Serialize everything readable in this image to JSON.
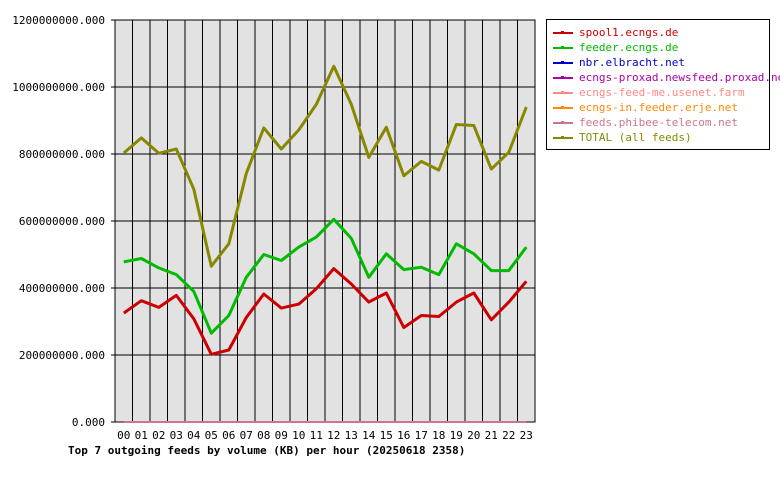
{
  "chart_data": {
    "type": "line",
    "title": "Top 7 outgoing feeds by volume (KB) per hour (20250618 2358)",
    "xlabel": "",
    "ylabel": "",
    "categories": [
      "00",
      "01",
      "02",
      "03",
      "04",
      "05",
      "06",
      "07",
      "08",
      "09",
      "10",
      "11",
      "12",
      "13",
      "14",
      "15",
      "16",
      "17",
      "18",
      "19",
      "20",
      "21",
      "22",
      "23"
    ],
    "yticks": [
      "0.000",
      "200000000.000",
      "400000000.000",
      "600000000.000",
      "800000000.000",
      "1000000000.000",
      "1200000000.000"
    ],
    "ylim": [
      0,
      1200000000
    ],
    "grid": true,
    "legend_position": "right",
    "series": [
      {
        "name": "spool1.ecngs.de",
        "color": "#cc0000",
        "values": [
          325000000,
          362000000,
          342000000,
          378000000,
          308000000,
          202000000,
          215000000,
          312000000,
          382000000,
          340000000,
          352000000,
          398000000,
          458000000,
          412000000,
          358000000,
          385000000,
          282000000,
          318000000,
          315000000,
          358000000,
          385000000,
          305000000,
          358000000,
          420000000
        ]
      },
      {
        "name": "feeder.ecngs.de",
        "color": "#00bb00",
        "values": [
          478000000,
          488000000,
          460000000,
          440000000,
          390000000,
          265000000,
          318000000,
          432000000,
          500000000,
          482000000,
          522000000,
          552000000,
          605000000,
          548000000,
          432000000,
          502000000,
          455000000,
          462000000,
          440000000,
          532000000,
          502000000,
          452000000,
          452000000,
          522000000
        ]
      },
      {
        "name": "nbr.elbracht.net",
        "color": "#0000cc",
        "values": [
          0,
          0,
          0,
          0,
          0,
          0,
          0,
          0,
          0,
          0,
          0,
          0,
          0,
          0,
          0,
          0,
          0,
          0,
          0,
          0,
          0,
          0,
          0,
          0
        ]
      },
      {
        "name": "ecngs-proxad.newsfeed.proxad.net",
        "color": "#aa00aa",
        "values": [
          0,
          0,
          0,
          0,
          0,
          0,
          0,
          0,
          0,
          0,
          0,
          0,
          0,
          0,
          0,
          0,
          0,
          0,
          0,
          0,
          0,
          0,
          0,
          0
        ]
      },
      {
        "name": "ecngs-feed-me.usenet.farm",
        "color": "#ff8888",
        "values": [
          0,
          0,
          0,
          0,
          0,
          0,
          0,
          0,
          0,
          0,
          0,
          0,
          0,
          0,
          0,
          0,
          0,
          0,
          0,
          0,
          0,
          0,
          0,
          0
        ]
      },
      {
        "name": "ecngs-in.feeder.erje.net",
        "color": "#ff8800",
        "values": [
          0,
          0,
          0,
          0,
          0,
          0,
          0,
          0,
          0,
          0,
          0,
          0,
          0,
          0,
          0,
          0,
          0,
          0,
          0,
          0,
          0,
          0,
          0,
          0
        ]
      },
      {
        "name": "feeds.phibee-telecom.net",
        "color": "#cc7788",
        "values": [
          0,
          0,
          0,
          0,
          0,
          0,
          0,
          0,
          0,
          0,
          0,
          0,
          0,
          0,
          0,
          0,
          0,
          0,
          0,
          0,
          0,
          0,
          0,
          0
        ]
      },
      {
        "name": "TOTAL (all feeds)",
        "color": "#888800",
        "values": [
          803000000,
          848000000,
          802000000,
          815000000,
          695000000,
          465000000,
          532000000,
          742000000,
          878000000,
          815000000,
          872000000,
          948000000,
          1062000000,
          948000000,
          790000000,
          880000000,
          735000000,
          778000000,
          752000000,
          888000000,
          885000000,
          755000000,
          805000000,
          940000000
        ]
      }
    ]
  }
}
